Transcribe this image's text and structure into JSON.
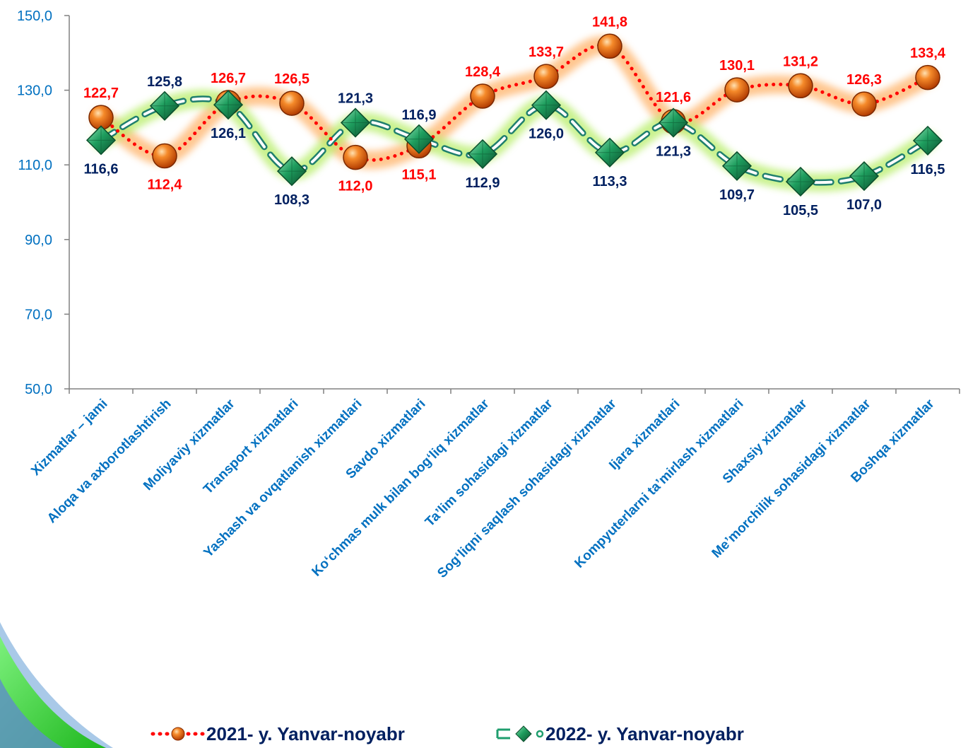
{
  "colors": {
    "axis_text": "#0070C0",
    "series_2021": "#FF0000",
    "series_2021_label": "#FF0000",
    "series_2022": "#1F9E6E",
    "series_2022_label": "#002060",
    "legend_text": "#002060"
  },
  "chart_data": {
    "type": "line",
    "title": "",
    "xlabel": "",
    "ylabel": "",
    "ylim": [
      50,
      150
    ],
    "yticks": [
      "50,0",
      "70,0",
      "90,0",
      "110,0",
      "130,0",
      "150,0"
    ],
    "grid": false,
    "legend_position": "bottom",
    "categories": [
      "Xizmatlar – jami",
      "Aloqa va axborotlashtirish",
      "Moliyaviy xizmatlar",
      "Transport xizmatlari",
      "Yashash va ovqatlanish xizmatlari",
      "Savdo xizmatlari",
      "Koʻchmas mulk bilan bogʻliq xizmatlar",
      "Taʼlim sohasidagi xizmatlar",
      "Sogʻliqni saqlash sohasidagi xizmatlar",
      "Ijara xizmatlari",
      "Kompyuterlarni taʼmirlash xizmatlari",
      "Shaxsiy xizmatlar",
      "Meʼmorchilik sohasidagi xizmatlar",
      "Boshqa xizmatlar"
    ],
    "series": [
      {
        "name": "2021- y. Yanvar-noyabr",
        "values": [
          122.7,
          112.4,
          126.7,
          126.5,
          112.0,
          115.1,
          128.4,
          133.7,
          141.8,
          121.6,
          130.1,
          131.2,
          126.3,
          133.4
        ],
        "labels": [
          "122,7",
          "112,4",
          "126,7",
          "126,5",
          "112,0",
          "115,1",
          "128,4",
          "133,7",
          "141,8",
          "121,6",
          "130,1",
          "131,2",
          "126,3",
          "133,4"
        ]
      },
      {
        "name": "2022- y. Yanvar-noyabr",
        "values": [
          116.6,
          125.8,
          126.1,
          108.3,
          121.3,
          116.9,
          112.9,
          126.0,
          113.3,
          121.3,
          109.7,
          105.5,
          107.0,
          116.5
        ],
        "labels": [
          "116,6",
          "125,8",
          "126,1",
          "108,3",
          "121,3",
          "116,9",
          "112,9",
          "126,0",
          "113,3",
          "121,3",
          "109,7",
          "105,5",
          "107,0",
          "116,5"
        ]
      }
    ]
  }
}
